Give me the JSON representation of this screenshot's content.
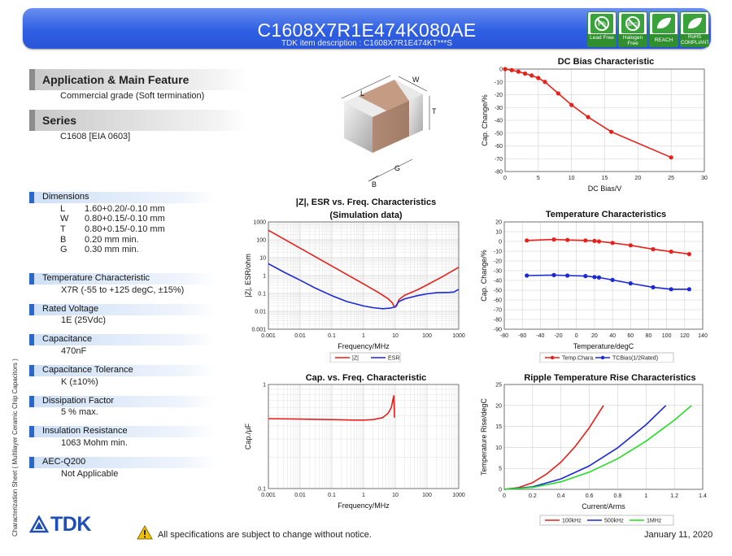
{
  "header": {
    "part_number": "C1608X7R1E474K080AE",
    "item_description": "TDK item description : C1608X7R1E474KT***S",
    "badges": [
      {
        "label": "Lead Free",
        "icon": "lead-free-icon"
      },
      {
        "label": "Halogen Free",
        "icon": "halogen-free-icon"
      },
      {
        "label": "REACH",
        "icon": "leaf-icon"
      },
      {
        "label": "RoHS COMPLIANT",
        "icon": "leaf-icon"
      }
    ]
  },
  "application": {
    "title": "Application & Main Feature",
    "text": "Commercial grade (Soft termination)"
  },
  "series": {
    "title": "Series",
    "text": "C1608 [EIA 0603]"
  },
  "component_drawing": {
    "labels": [
      "L",
      "W",
      "T",
      "B",
      "G"
    ]
  },
  "dimensions": {
    "title": "Dimensions",
    "rows": [
      {
        "key": "L",
        "value": "1.60+0.20/-0.10 mm"
      },
      {
        "key": "W",
        "value": "0.80+0.15/-0.10 mm"
      },
      {
        "key": "T",
        "value": "0.80+0.15/-0.10 mm"
      },
      {
        "key": "B",
        "value": "0.20 mm min."
      },
      {
        "key": "G",
        "value": "0.30 mm min."
      }
    ]
  },
  "properties": [
    {
      "title": "Temperature Characteristic",
      "value": "X7R (-55 to +125 degC, ±15%)"
    },
    {
      "title": "Rated Voltage",
      "value": "1E (25Vdc)"
    },
    {
      "title": "Capacitance",
      "value": "470nF"
    },
    {
      "title": "Capacitance Tolerance",
      "value": "K (±10%)"
    },
    {
      "title": "Dissipation Factor",
      "value": "5 % max."
    },
    {
      "title": "Insulation Resistance",
      "value": "1063 Mohm min."
    },
    {
      "title": "AEC-Q200",
      "value": "Not Applicable"
    }
  ],
  "vertical_label": "Characterization Sheet ( Multilayer Ceramic Chip Capacitors )",
  "footer": {
    "logo": "TDK",
    "note": "All specifications are subject to change without notice.",
    "date": "January 11, 2020"
  },
  "chart_data": [
    {
      "id": "dc_bias",
      "type": "line",
      "title": "DC Bias Characteristic",
      "xlabel": "DC Bias/V",
      "ylabel": "Cap. Change/%",
      "xlim": [
        0,
        30
      ],
      "ylim": [
        -80,
        0
      ],
      "xticks": [
        0,
        5,
        10,
        15,
        20,
        25,
        30
      ],
      "yticks": [
        0,
        -10,
        -20,
        -30,
        -40,
        -50,
        -60,
        -70,
        -80
      ],
      "grid": true,
      "series": [
        {
          "color": "#e8201a",
          "markers": true,
          "x": [
            0,
            1,
            2,
            3,
            4,
            5,
            6,
            8,
            10,
            12.5,
            16,
            25
          ],
          "y": [
            0,
            -0.8,
            -2,
            -3.5,
            -5,
            -7,
            -10,
            -19,
            -28,
            -37.5,
            -49,
            -69
          ]
        }
      ]
    },
    {
      "id": "impedance",
      "type": "line",
      "title": "|Z|, ESR vs. Freq. Characteristics",
      "subtitle": "(Simulation data)",
      "xlabel": "Frequency/MHz",
      "ylabel": "|Z|, ESR/ohm",
      "xscale": "log",
      "yscale": "log",
      "xlim": [
        0.001,
        1000
      ],
      "ylim": [
        0.001,
        1000
      ],
      "xticks": [
        "0.001",
        "0.01",
        "0.1",
        "1",
        "10",
        "100",
        "1000"
      ],
      "yticks": [
        "0.001",
        "0.01",
        "0.1",
        "1",
        "10",
        "100",
        "1000"
      ],
      "grid": true,
      "legend": "bottom",
      "series": [
        {
          "name": "|Z|",
          "color": "#e8201a",
          "x": [
            0.001,
            0.01,
            0.1,
            1,
            3,
            6,
            8,
            9.5,
            11,
            13,
            20,
            50,
            100,
            300,
            1000
          ],
          "y": [
            340,
            34,
            3.4,
            0.34,
            0.11,
            0.05,
            0.03,
            0.017,
            0.02,
            0.045,
            0.08,
            0.16,
            0.3,
            0.85,
            2.9
          ]
        },
        {
          "name": "ESR",
          "color": "#1a28d8",
          "x": [
            0.001,
            0.003,
            0.01,
            0.03,
            0.1,
            0.3,
            1,
            2,
            4,
            7,
            10,
            13,
            20,
            50,
            100,
            200,
            500,
            700,
            1000
          ],
          "y": [
            4.6,
            1.6,
            0.55,
            0.2,
            0.075,
            0.035,
            0.02,
            0.016,
            0.014,
            0.015,
            0.018,
            0.035,
            0.05,
            0.075,
            0.095,
            0.11,
            0.115,
            0.12,
            0.17
          ]
        }
      ]
    },
    {
      "id": "temperature",
      "type": "line",
      "title": "Temperature Characteristics",
      "xlabel": "Temperature/degC",
      "ylabel": "Cap. Change/%",
      "xlim": [
        -80,
        140
      ],
      "ylim": [
        -90,
        20
      ],
      "xticks": [
        -80,
        -60,
        -40,
        -20,
        0,
        20,
        40,
        60,
        80,
        100,
        120,
        140
      ],
      "yticks": [
        20,
        10,
        0,
        -10,
        -20,
        -30,
        -40,
        -50,
        -60,
        -70,
        -80,
        -90
      ],
      "grid": true,
      "legend": "bottom",
      "series": [
        {
          "name": "Temp.Chara.",
          "color": "#e8201a",
          "markers": true,
          "x": [
            -55,
            -25,
            -10,
            10,
            20,
            25,
            40,
            60,
            85,
            105,
            125
          ],
          "y": [
            1,
            2,
            1.5,
            1,
            0.5,
            0,
            -1.5,
            -4,
            -8,
            -10.5,
            -13
          ]
        },
        {
          "name": "TCBias(1/2Rated)",
          "color": "#1a28d8",
          "markers": true,
          "x": [
            -55,
            -25,
            -10,
            10,
            20,
            25,
            40,
            60,
            85,
            105,
            125
          ],
          "y": [
            -35,
            -34.5,
            -35,
            -35.5,
            -36.5,
            -37,
            -39.5,
            -43,
            -47,
            -49,
            -49
          ]
        }
      ]
    },
    {
      "id": "cap_freq",
      "type": "line",
      "title": "Cap. vs. Freq. Characteristic",
      "xlabel": "Frequency/MHz",
      "ylabel": "Cap./µF",
      "xscale": "log",
      "yscale": "log",
      "xlim": [
        0.001,
        1000
      ],
      "ylim": [
        0.1,
        1
      ],
      "xticks": [
        "0.001",
        "0.01",
        "0.1",
        "1",
        "10",
        "100",
        "1000"
      ],
      "yticks": [
        "1",
        "0.1"
      ],
      "grid": true,
      "series": [
        {
          "color": "#e8201a",
          "x": [
            0.001,
            0.01,
            0.1,
            0.5,
            1,
            2,
            4,
            6,
            7.5,
            8.5,
            9,
            9.5
          ],
          "y": [
            0.47,
            0.465,
            0.46,
            0.455,
            0.455,
            0.46,
            0.48,
            0.53,
            0.6,
            0.72,
            0.78,
            0.48
          ]
        }
      ]
    },
    {
      "id": "ripple",
      "type": "line",
      "title": "Ripple Temperature Rise Characteristics",
      "xlabel": "Current/Arms",
      "ylabel": "Temperature Rise/degC",
      "xlim": [
        0,
        1.4
      ],
      "ylim": [
        0,
        25
      ],
      "xticks": [
        0,
        0.2,
        0.4,
        0.6,
        0.8,
        1,
        1.2,
        1.4
      ],
      "yticks": [
        0,
        5,
        10,
        15,
        20,
        25
      ],
      "grid": true,
      "legend": "bottom",
      "series": [
        {
          "name": "100kHz",
          "color": "#e8201a",
          "x": [
            0,
            0.1,
            0.2,
            0.3,
            0.4,
            0.5,
            0.6,
            0.7
          ],
          "y": [
            0,
            0.4,
            1.6,
            3.7,
            6.5,
            10.2,
            14.7,
            20
          ]
        },
        {
          "name": "500kHz",
          "color": "#1a28d8",
          "x": [
            0,
            0.2,
            0.4,
            0.6,
            0.8,
            1.0,
            1.14
          ],
          "y": [
            0,
            0.6,
            2.5,
            5.6,
            9.9,
            15.4,
            20
          ]
        },
        {
          "name": "1MHz",
          "color": "#22dd22",
          "x": [
            0,
            0.2,
            0.4,
            0.6,
            0.8,
            1.0,
            1.2,
            1.32
          ],
          "y": [
            0,
            0.46,
            1.8,
            4.1,
            7.3,
            11.5,
            16.5,
            20
          ]
        }
      ]
    }
  ]
}
